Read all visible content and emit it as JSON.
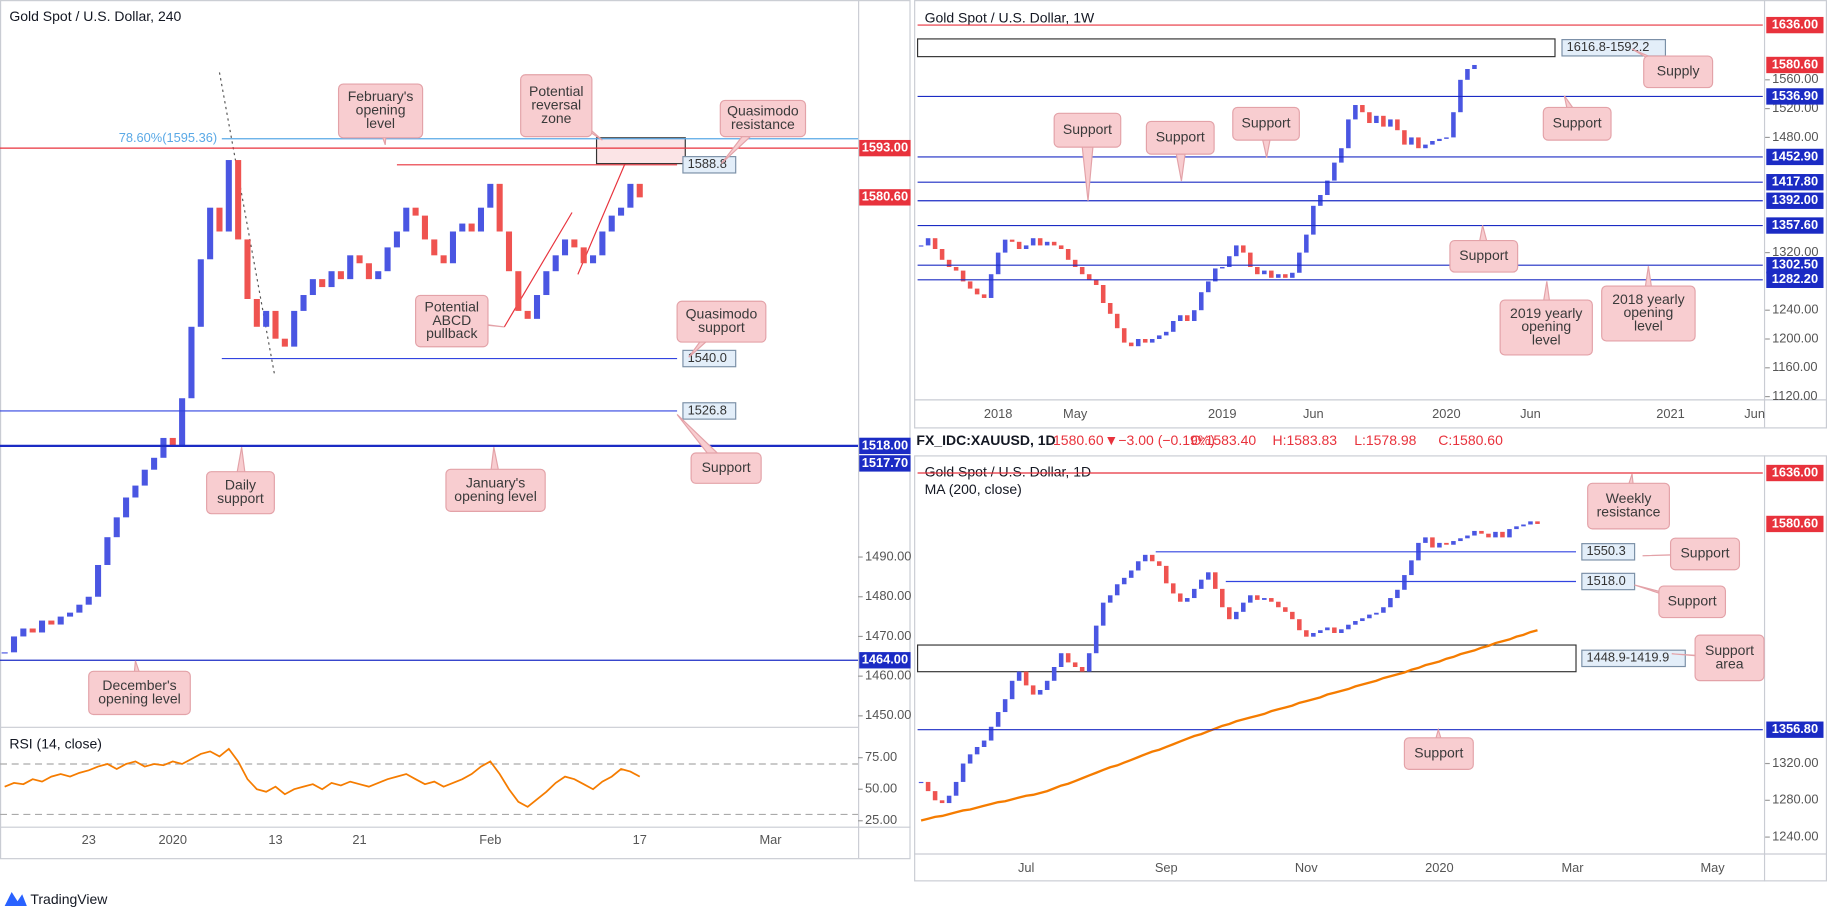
{
  "chart_data": [
    {
      "type": "candlestick",
      "title": "Gold Spot / U.S. Dollar, 240",
      "up_color": "#4a56e2",
      "down_color": "#ef5350",
      "categories": [
        null,
        null,
        null,
        null,
        null,
        null,
        null,
        null,
        null,
        "23",
        null,
        null,
        null,
        null,
        null,
        null,
        null,
        null,
        "2020",
        null,
        null,
        null,
        null,
        null,
        null,
        null,
        null,
        null,
        null,
        "13",
        null,
        null,
        null,
        null,
        null,
        null,
        null,
        null,
        "21",
        null,
        null,
        null,
        null,
        null,
        null,
        null,
        null,
        null,
        null,
        null,
        null,
        null,
        "Feb",
        null,
        null,
        null,
        null,
        null,
        null,
        null,
        null,
        null,
        null,
        null,
        null,
        null,
        null,
        null,
        "17",
        null,
        null,
        null,
        null,
        null,
        null,
        null,
        null,
        null,
        null,
        null,
        null,
        null,
        "Mar",
        null,
        null,
        null,
        null,
        null,
        null,
        null,
        null,
        null
      ],
      "values": [
        1466,
        1470,
        1472,
        1471,
        1474,
        1473,
        1475,
        1476,
        1478,
        1480,
        1488,
        1495,
        1500,
        1505,
        1508,
        1512,
        1515,
        1520,
        1518,
        1530,
        1548,
        1565,
        1578,
        1572,
        1590,
        1570,
        1555,
        1548,
        1552,
        1545,
        1543,
        1552,
        1556,
        1560,
        1558,
        1562,
        1560,
        1566,
        1564,
        1560,
        1562,
        1568,
        1572,
        1578,
        1576,
        1570,
        1566,
        1564,
        1572,
        1574,
        1572,
        1578,
        1584,
        1572,
        1562,
        1552,
        1550,
        1556,
        1562,
        1566,
        1570,
        1568,
        1564,
        1566,
        1572,
        1576,
        1578,
        1584,
        1580.6,
        null,
        null,
        null,
        null,
        null,
        null,
        null,
        null,
        null,
        null,
        null,
        null,
        null,
        null,
        null,
        null,
        null,
        null,
        null,
        null,
        null,
        null,
        null
      ],
      "ylim": [
        1447.4,
        1630.3
      ],
      "yticks": [
        {
          "value": 1450,
          "label": "1450.00"
        },
        {
          "value": 1460,
          "label": "1460.00"
        },
        {
          "value": 1470,
          "label": "1470.00"
        },
        {
          "value": 1480,
          "label": "1480.00"
        },
        {
          "value": 1490,
          "label": "1490.00"
        }
      ],
      "levels": [
        {
          "value": 1595.36,
          "label": "78.60%(1595.36)",
          "color": "#5aa9e6"
        },
        {
          "value": 1593,
          "label": "1593.00",
          "color": "#e8323c"
        },
        {
          "value": 1588.8,
          "label": "1588.8",
          "color": "#e8323c"
        },
        {
          "value": 1580.6,
          "label": "1580.60",
          "color": "#e8323c"
        },
        {
          "value": 1540,
          "label": "1540.0",
          "color": "#3244e0"
        },
        {
          "value": 1526.8,
          "label": "1526.8",
          "color": "#3244e0"
        },
        {
          "value": 1518,
          "label": "1518.00",
          "color": "#1b2bc4"
        },
        {
          "value": 1517.7,
          "label": "1517.70",
          "color": "#1b2bc4"
        },
        {
          "value": 1464,
          "label": "1464.00",
          "color": "#1b2bc4"
        }
      ],
      "zones": [
        {
          "low": 1589.1,
          "high": 1595.6
        }
      ],
      "callouts": [
        [
          "February's",
          "opening",
          "level"
        ],
        [
          "Potential",
          "reversal",
          "zone"
        ],
        [
          "Quasimodo",
          "resistance"
        ],
        [
          "Potential",
          "ABCD",
          "pullback"
        ],
        [
          "Quasimodo",
          "support"
        ],
        [
          "Daily",
          "support"
        ],
        [
          "January's",
          "opening level"
        ],
        [
          "Support"
        ],
        [
          "December's",
          "opening level"
        ]
      ],
      "rsi": {
        "label": "RSI (14, close)",
        "color": "#f57c00",
        "ylim": [
          20.4,
          97.2
        ],
        "yticks": [
          {
            "value": 75,
            "label": "75.00"
          },
          {
            "value": 50,
            "label": "50.00"
          },
          {
            "value": 25,
            "label": "25.00"
          }
        ],
        "bands": [
          70,
          30
        ],
        "values": [
          52,
          55,
          54,
          58,
          56,
          60,
          62,
          60,
          63,
          65,
          68,
          70,
          66,
          70,
          72,
          68,
          70,
          69,
          72,
          70,
          74,
          78,
          80,
          76,
          82,
          72,
          58,
          50,
          48,
          52,
          46,
          50,
          52,
          54,
          50,
          55,
          53,
          56,
          54,
          52,
          55,
          58,
          60,
          62,
          58,
          54,
          56,
          52,
          55,
          58,
          62,
          68,
          72,
          62,
          50,
          40,
          36,
          42,
          48,
          55,
          60,
          58,
          54,
          50,
          56,
          60,
          66,
          64,
          60,
          null,
          null,
          null,
          null,
          null,
          null,
          null,
          null,
          null,
          null,
          null,
          null,
          null,
          null,
          null,
          null,
          null,
          null,
          null,
          null,
          null,
          null,
          null
        ]
      }
    },
    {
      "type": "candlestick",
      "title": "Gold Spot / U.S. Dollar, 1W",
      "up_color": "#4a56e2",
      "down_color": "#ef5350",
      "categories": [
        null,
        null,
        null,
        null,
        null,
        null,
        null,
        null,
        null,
        null,
        null,
        "2018",
        null,
        null,
        null,
        null,
        null,
        null,
        null,
        null,
        null,
        null,
        "May",
        null,
        null,
        null,
        null,
        null,
        null,
        null,
        null,
        null,
        null,
        null,
        null,
        null,
        null,
        null,
        null,
        null,
        null,
        null,
        null,
        "2019",
        null,
        null,
        null,
        null,
        null,
        null,
        null,
        null,
        null,
        null,
        null,
        null,
        "Jun",
        null,
        null,
        null,
        null,
        null,
        null,
        null,
        null,
        null,
        null,
        null,
        null,
        null,
        null,
        null,
        null,
        null,
        null,
        "2020",
        null,
        null,
        null,
        null,
        null,
        null,
        null,
        null,
        null,
        null,
        null,
        "Jun",
        null,
        null,
        null,
        null,
        null,
        null,
        null,
        null,
        null,
        null,
        null,
        null,
        null,
        null,
        null,
        null,
        null,
        null,
        null,
        "2021",
        null,
        null,
        null,
        null,
        null,
        null,
        null,
        null,
        null,
        null,
        null,
        "Jun"
      ],
      "values": [
        1330,
        1340,
        1325,
        1310,
        1300,
        1295,
        1280,
        1270,
        1262,
        1257,
        1290,
        1320,
        1338,
        1335,
        1325,
        1330,
        1340,
        1330,
        1335,
        1330,
        1325,
        1310,
        1300,
        1290,
        1282,
        1275,
        1250,
        1235,
        1215,
        1195,
        1190,
        1200,
        1195,
        1200,
        1205,
        1210,
        1225,
        1233,
        1225,
        1240,
        1265,
        1280,
        1298,
        1300,
        1315,
        1330,
        1320,
        1300,
        1290,
        1295,
        1285,
        1290,
        1285,
        1292,
        1320,
        1345,
        1385,
        1400,
        1420,
        1445,
        1465,
        1505,
        1525,
        1515,
        1500,
        1510,
        1495,
        1505,
        1490,
        1470,
        1480,
        1465,
        1470,
        1475,
        1478,
        1480,
        1515,
        1560,
        1575,
        1580.6,
        null,
        null,
        null,
        null,
        null,
        null,
        null,
        null,
        null,
        null,
        null,
        null,
        null,
        null,
        null,
        null,
        null,
        null,
        null,
        null,
        null,
        null,
        null,
        null,
        null,
        null,
        null,
        null,
        null,
        null,
        null,
        null,
        null,
        null,
        null,
        null,
        null,
        null,
        null,
        null
      ],
      "ylim": [
        1119.5,
        1670.8
      ],
      "yticks": [
        {
          "value": 1120,
          "label": "1120.00"
        },
        {
          "value": 1160,
          "label": "1160.00"
        },
        {
          "value": 1200,
          "label": "1200.00"
        },
        {
          "value": 1240,
          "label": "1240.00"
        },
        {
          "value": 1320,
          "label": "1320.00"
        },
        {
          "value": 1480,
          "label": "1480.00"
        },
        {
          "value": 1520,
          "label": "1520.00"
        },
        {
          "value": 1560,
          "label": "1560.00"
        }
      ],
      "levels": [
        {
          "value": 1636,
          "label": "1636.00",
          "color": "#e8323c"
        },
        {
          "value": 1580.6,
          "label": "1580.60",
          "color": "#e8323c"
        },
        {
          "value": 1536.9,
          "label": "1536.90",
          "color": "#1b2bc4"
        },
        {
          "value": 1452.9,
          "label": "1452.90",
          "color": "#1b2bc4"
        },
        {
          "value": 1417.8,
          "label": "1417.80",
          "color": "#1b2bc4"
        },
        {
          "value": 1392,
          "label": "1392.00",
          "color": "#1b2bc4"
        },
        {
          "value": 1357.6,
          "label": "1357.60",
          "color": "#1b2bc4"
        },
        {
          "value": 1302.5,
          "label": "1302.50",
          "color": "#1b2bc4"
        },
        {
          "value": 1282.2,
          "label": "1282.20",
          "color": "#1b2bc4"
        }
      ],
      "zones": [
        {
          "low": 1592.2,
          "high": 1616.8,
          "label": "1616.8-1592.2"
        }
      ],
      "callouts": [
        [
          "Supply"
        ],
        [
          "Support"
        ],
        [
          "Support"
        ],
        [
          "Support"
        ],
        [
          "Support"
        ],
        [
          "Support"
        ],
        [
          "2019 yearly",
          "opening",
          "level"
        ],
        [
          "2018 yearly",
          "opening",
          "level"
        ]
      ]
    },
    {
      "type": "candlestick",
      "title": "Gold Spot / U.S. Dollar, 1D",
      "up_color": "#4a56e2",
      "down_color": "#ef5350",
      "categories": [
        null,
        null,
        null,
        null,
        null,
        null,
        null,
        null,
        null,
        null,
        null,
        null,
        null,
        null,
        null,
        "Jul",
        null,
        null,
        null,
        null,
        null,
        null,
        null,
        null,
        null,
        null,
        null,
        null,
        null,
        null,
        null,
        null,
        null,
        null,
        null,
        "Sep",
        null,
        null,
        null,
        null,
        null,
        null,
        null,
        null,
        null,
        null,
        null,
        null,
        null,
        null,
        null,
        null,
        null,
        null,
        null,
        "Nov",
        null,
        null,
        null,
        null,
        null,
        null,
        null,
        null,
        null,
        null,
        null,
        null,
        null,
        null,
        null,
        null,
        null,
        null,
        "2020",
        null,
        null,
        null,
        null,
        null,
        null,
        null,
        null,
        null,
        null,
        null,
        null,
        null,
        null,
        null,
        null,
        null,
        null,
        "Mar",
        null,
        null,
        null,
        null,
        null,
        null,
        null,
        null,
        null,
        null,
        null,
        null,
        null,
        null,
        null,
        null,
        null,
        null,
        null,
        "May",
        null,
        null,
        null,
        null,
        null,
        null
      ],
      "values": [
        1300,
        1290,
        1280,
        1277,
        1285,
        1300,
        1320,
        1330,
        1338,
        1345,
        1360,
        1376,
        1390,
        1410,
        1420,
        1405,
        1395,
        1400,
        1410,
        1425,
        1440,
        1430,
        1425,
        1420,
        1440,
        1470,
        1495,
        1503,
        1515,
        1522,
        1530,
        1540,
        1547,
        1540,
        1535,
        1516,
        1505,
        1496,
        1500,
        1510,
        1520,
        1528,
        1510,
        1490,
        1477,
        1485,
        1495,
        1503,
        1498,
        1500,
        1496,
        1490,
        1485,
        1477,
        1465,
        1458,
        1462,
        1465,
        1468,
        1462,
        1466,
        1471,
        1475,
        1478,
        1482,
        1484,
        1490,
        1500,
        1509,
        1525,
        1541,
        1560,
        1566,
        1555,
        1560,
        1558,
        1562,
        1565,
        1568,
        1573,
        1570,
        1566,
        1572,
        1566,
        1575,
        1578,
        1580,
        1583.4,
        1580.6,
        null,
        null,
        null,
        null,
        null,
        null,
        null,
        null,
        null,
        null,
        null,
        null,
        null,
        null,
        null,
        null,
        null,
        null,
        null,
        null,
        null,
        null,
        null,
        null,
        null,
        null,
        null,
        null,
        null,
        null,
        null
      ],
      "ma": {
        "label": "MA (200, close)",
        "color": "#f57c00",
        "values": [
          1258,
          1260,
          1262,
          1263,
          1265,
          1267,
          1269,
          1270,
          1272,
          1274,
          1276,
          1278,
          1279,
          1281,
          1283,
          1285,
          1286,
          1288,
          1290,
          1293,
          1296,
          1298,
          1301,
          1304,
          1307,
          1310,
          1313,
          1316,
          1318,
          1321,
          1324,
          1327,
          1330,
          1333,
          1335,
          1338,
          1341,
          1344,
          1347,
          1350,
          1352,
          1355,
          1358,
          1361,
          1363,
          1366,
          1368,
          1370,
          1372,
          1374,
          1377,
          1379,
          1381,
          1383,
          1386,
          1388,
          1390,
          1392,
          1395,
          1397,
          1399,
          1401,
          1404,
          1406,
          1408,
          1410,
          1413,
          1415,
          1417,
          1419,
          1422,
          1424,
          1427,
          1429,
          1431,
          1434,
          1436,
          1439,
          1441,
          1443,
          1446,
          1448,
          1451,
          1453,
          1455,
          1458,
          1460,
          1463,
          1465,
          null,
          null,
          null,
          null,
          null,
          null,
          null,
          null,
          null,
          null,
          null,
          null,
          null,
          null,
          null,
          null,
          null,
          null,
          null,
          null,
          null,
          null,
          null,
          null,
          null,
          null,
          null,
          null,
          null,
          null,
          null
        ]
      },
      "ylim": [
        1223.5,
        1652.7
      ],
      "yticks": [
        {
          "value": 1240,
          "label": "1240.00"
        },
        {
          "value": 1280,
          "label": "1280.00"
        },
        {
          "value": 1320,
          "label": "1320.00"
        }
      ],
      "levels": [
        {
          "value": 1636,
          "label": "1636.00",
          "color": "#e8323c"
        },
        {
          "value": 1580.6,
          "label": "1580.60",
          "color": "#e8323c"
        },
        {
          "value": 1550.3,
          "label": "1550.3",
          "color": "#3244e0"
        },
        {
          "value": 1518,
          "label": "1518.0",
          "color": "#3244e0"
        },
        {
          "value": 1356.8,
          "label": "1356.80",
          "color": "#1b2bc4"
        }
      ],
      "zones": [
        {
          "low": 1419.9,
          "high": 1448.9,
          "label": "1448.9-1419.9"
        }
      ],
      "callouts": [
        [
          "Weekly",
          "resistance"
        ],
        [
          "Support"
        ],
        [
          "Support"
        ],
        [
          "Support",
          "area"
        ],
        [
          "Support"
        ]
      ]
    }
  ],
  "header": {
    "symbol": "FX_IDC:XAUUSD, 1D",
    "last": "1580.60",
    "arrow": "▼",
    "change": "−3.00 (−0.19%)",
    "open": "O:1583.40",
    "high": "H:1583.83",
    "low": "L:1578.98",
    "close": "C:1580.60"
  },
  "footer": {
    "brand": "TradingView"
  }
}
